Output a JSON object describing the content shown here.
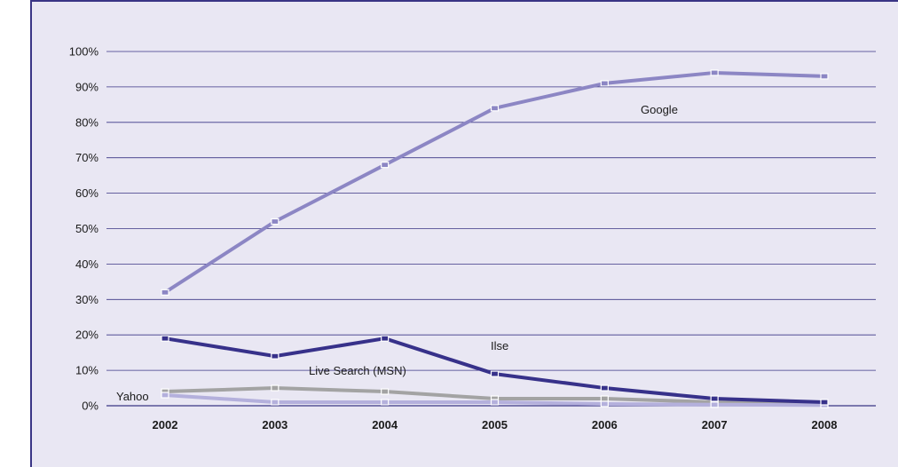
{
  "chart_data": {
    "type": "line",
    "title": "",
    "xlabel": "",
    "ylabel": "",
    "ylim": [
      0,
      100
    ],
    "y_ticks": [
      "0%",
      "10%",
      "20%",
      "30%",
      "40%",
      "50%",
      "60%",
      "70%",
      "80%",
      "90%",
      "100%"
    ],
    "categories": [
      "2002",
      "2003",
      "2004",
      "2005",
      "2006",
      "2007",
      "2008"
    ],
    "grid": "horizontal",
    "legend": "none",
    "series": [
      {
        "name": "Google",
        "color": "#8c86c4",
        "values": [
          32,
          52,
          68,
          84,
          91,
          94,
          93
        ]
      },
      {
        "name": "Ilse",
        "color": "#37318a",
        "values": [
          19,
          14,
          19,
          9,
          5,
          2,
          1
        ]
      },
      {
        "name": "Live Search (MSN)",
        "color": "#a3a3a3",
        "values": [
          4,
          5,
          4,
          2,
          2,
          1,
          0.5
        ]
      },
      {
        "name": "Yahoo",
        "color": "#b4b0dc",
        "values": [
          3,
          1,
          1,
          1,
          0.5,
          0.3,
          0.2
        ]
      }
    ],
    "annotations": [
      {
        "text": "Google",
        "series": "Google"
      },
      {
        "text": "Ilse",
        "series": "Ilse"
      },
      {
        "text": "Live Search (MSN)",
        "series": "Live Search (MSN)"
      },
      {
        "text": "Yahoo",
        "series": "Yahoo"
      }
    ]
  }
}
